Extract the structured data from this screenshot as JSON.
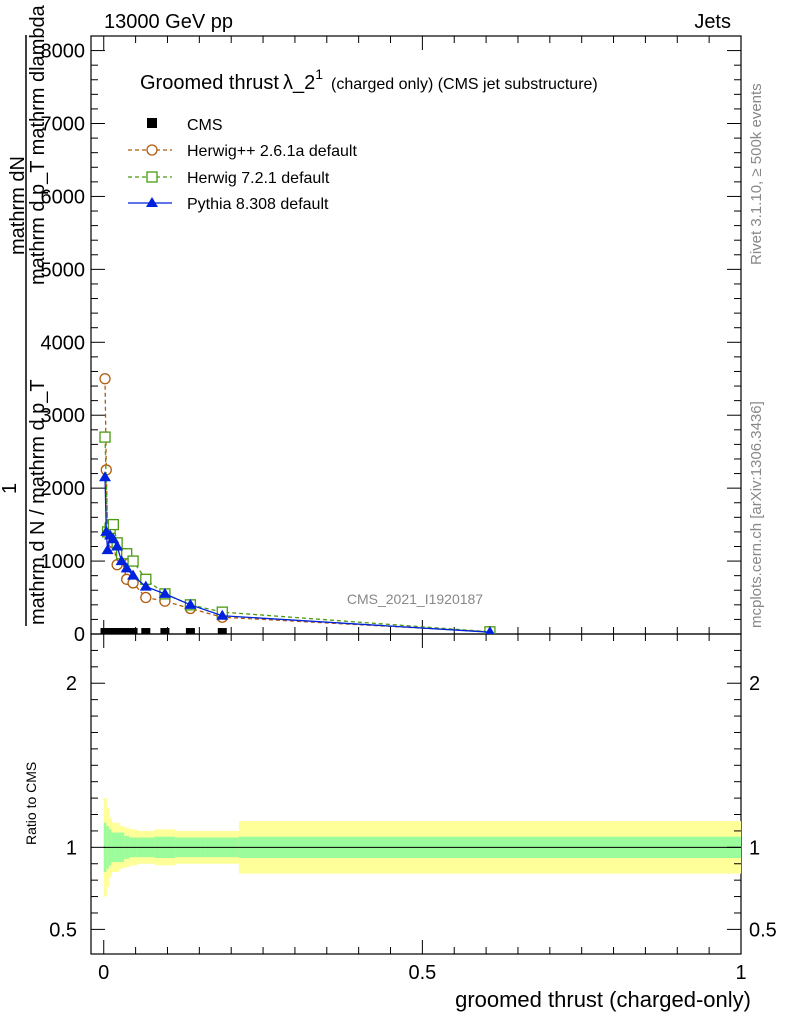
{
  "header": {
    "left": "13000 GeV pp",
    "right": "Jets"
  },
  "title": {
    "main": "Groomed thrust",
    "lambda": "λ_2",
    "sup": "1",
    "suffix": "(charged only) (CMS jet substructure)"
  },
  "side_text": {
    "rivet": "Rivet 3.1.10, ≥ 500k events",
    "mcplots": "mcplots.cern.ch [arXiv:1306.3436]"
  },
  "watermark": "CMS_2021_I1920187",
  "ylabel_main": {
    "top": "mathrm dN",
    "top2": "mathrm d p_T mathrm dlambda",
    "one": "1",
    "bottom": "mathrm d N / mathrm d p_T",
    "T": "T"
  },
  "ylabel_ratio": "Ratio to CMS",
  "xlabel": "groomed thrust (charged-only)",
  "colors": {
    "cms": "#000000",
    "herwig_pp": "#b15a0b",
    "herwig72": "#4a9a12",
    "pythia": "#0022dd",
    "band_inner": "#9afc9a",
    "band_outer": "#ffff99"
  },
  "chart_data": [
    {
      "type": "scatter",
      "title": "Groomed thrust λ_2^1 (charged only) (CMS jet substructure)",
      "xlabel": "groomed thrust (charged-only)",
      "ylabel": "1/(dN/dp_T) d²N/(dp_T dλ)",
      "xlim": [
        -0.02,
        1.0
      ],
      "ylim": [
        0,
        8200
      ],
      "yticks": [
        0,
        1000,
        2000,
        3000,
        4000,
        5000,
        6000,
        7000,
        8000
      ],
      "ytick_labels": [
        "0",
        "1000",
        "2000",
        "3000",
        "4000",
        "5000",
        "6000",
        "7000",
        "8000"
      ],
      "xticks": [
        0,
        0.5,
        1
      ],
      "xtick_labels": [
        "0",
        "0.5",
        "1"
      ],
      "series": [
        {
          "name": "CMS",
          "marker": "square-filled",
          "x": [
            0.002,
            0.006,
            0.01,
            0.015,
            0.021,
            0.028,
            0.036,
            0.046,
            0.066,
            0.096,
            0.136,
            0.186,
            0.606
          ],
          "y": [
            20,
            20,
            20,
            20,
            20,
            20,
            20,
            20,
            20,
            20,
            20,
            20,
            20
          ]
        },
        {
          "name": "Herwig++ 2.6.1a default",
          "marker": "circle-open",
          "x": [
            0.002,
            0.004,
            0.006,
            0.01,
            0.015,
            0.021,
            0.028,
            0.036,
            0.046,
            0.066,
            0.096,
            0.136,
            0.186,
            0.606
          ],
          "y": [
            3500,
            2250,
            1400,
            1500,
            1250,
            950,
            1050,
            750,
            700,
            500,
            450,
            350,
            230,
            30
          ]
        },
        {
          "name": "Herwig 7.2.1 default",
          "marker": "square-open",
          "x": [
            0.002,
            0.006,
            0.01,
            0.015,
            0.021,
            0.028,
            0.036,
            0.046,
            0.066,
            0.096,
            0.136,
            0.186,
            0.606
          ],
          "y": [
            2700,
            1400,
            1450,
            1500,
            1250,
            1100,
            1100,
            1000,
            750,
            550,
            400,
            300,
            30
          ]
        },
        {
          "name": "Pythia 8.308 default",
          "marker": "triangle-filled",
          "x": [
            0.002,
            0.004,
            0.006,
            0.01,
            0.015,
            0.021,
            0.028,
            0.036,
            0.046,
            0.066,
            0.096,
            0.136,
            0.186,
            0.606
          ],
          "y": [
            2150,
            1400,
            1150,
            1350,
            1300,
            1200,
            1000,
            900,
            800,
            650,
            550,
            400,
            250,
            25
          ]
        }
      ],
      "legend": [
        "CMS",
        "Herwig++ 2.6.1a default",
        "Herwig 7.2.1 default",
        "Pythia 8.308 default"
      ],
      "legend_position": "top-left"
    },
    {
      "type": "area",
      "ylabel": "Ratio to CMS",
      "ylim": [
        0.35,
        2.3
      ],
      "yticks": [
        0.5,
        1,
        2
      ],
      "ytick_labels": [
        "0.5",
        "1",
        "2"
      ],
      "xlim": [
        -0.02,
        1.0
      ],
      "xticks": [
        0,
        0.5,
        1
      ],
      "xtick_labels": [
        "0",
        "0.5",
        "1"
      ],
      "reference_line": 1,
      "bands": {
        "edges": [
          0,
          0.004,
          0.008,
          0.012,
          0.018,
          0.024,
          0.032,
          0.04,
          0.052,
          0.08,
          0.112,
          0.16,
          0.212,
          1.0
        ],
        "inner": [
          0.15,
          0.13,
          0.11,
          0.09,
          0.09,
          0.09,
          0.07,
          0.06,
          0.06,
          0.065,
          0.06,
          0.06,
          0.065
        ],
        "outer": [
          0.3,
          0.24,
          0.18,
          0.15,
          0.15,
          0.13,
          0.12,
          0.11,
          0.1,
          0.11,
          0.1,
          0.1,
          0.16
        ]
      }
    }
  ]
}
